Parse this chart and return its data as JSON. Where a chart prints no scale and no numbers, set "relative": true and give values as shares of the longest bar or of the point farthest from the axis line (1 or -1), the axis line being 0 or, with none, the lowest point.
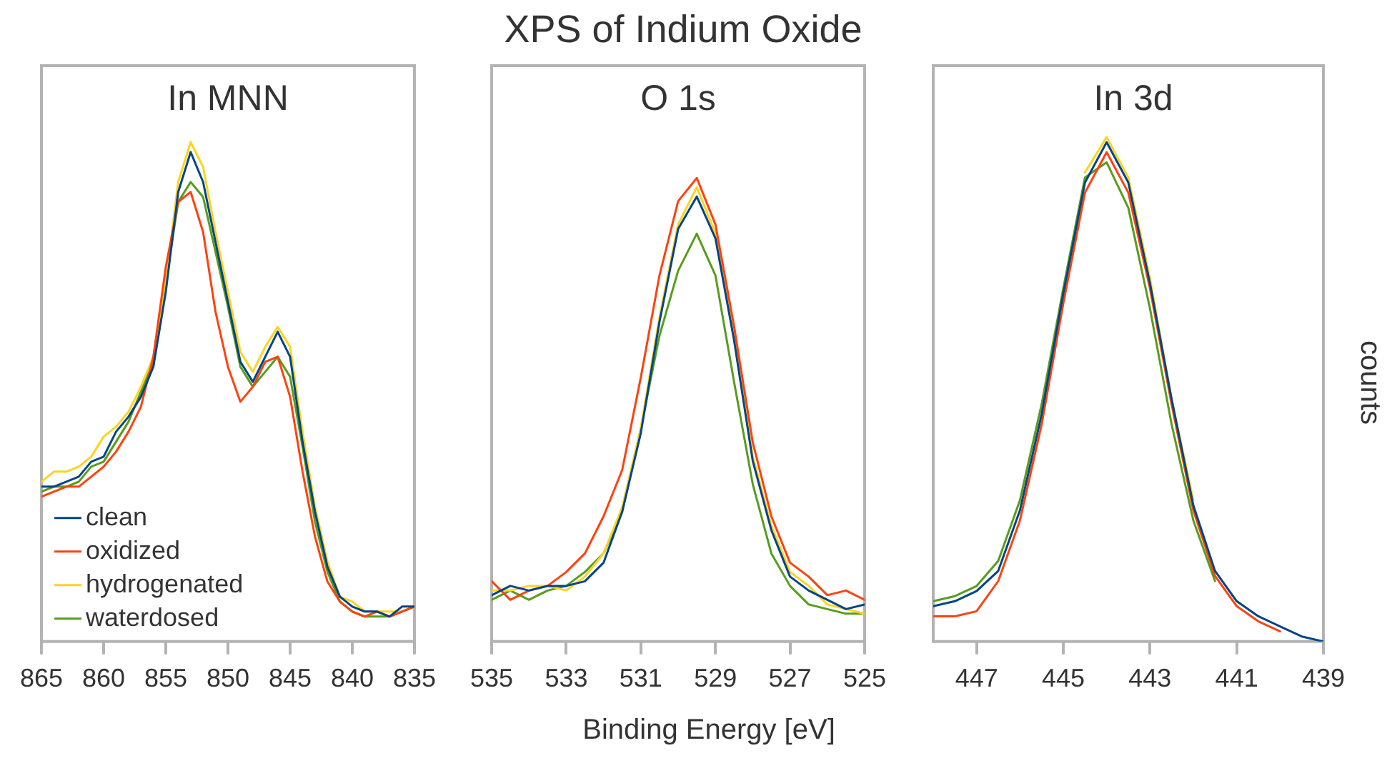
{
  "chart_data": [
    {
      "type": "line",
      "title": "In MNN",
      "relative": true,
      "marker": "none",
      "legend": "bottom left",
      "x": [
        865,
        864,
        863,
        862,
        861,
        860,
        859,
        858,
        857,
        856,
        855,
        854,
        853,
        852,
        851,
        850,
        849,
        848,
        847,
        846,
        845,
        844,
        843,
        842,
        841,
        840,
        839,
        838,
        837,
        836,
        835
      ],
      "xlim": [
        865,
        835
      ],
      "xticks": [
        865,
        860,
        855,
        850,
        845,
        840,
        835
      ],
      "series": [
        {
          "name": "clean",
          "color": "#004586",
          "values": [
            0.31,
            0.31,
            0.32,
            0.33,
            0.36,
            0.37,
            0.42,
            0.45,
            0.49,
            0.55,
            0.7,
            0.9,
            0.98,
            0.92,
            0.8,
            0.68,
            0.56,
            0.52,
            0.57,
            0.62,
            0.57,
            0.4,
            0.26,
            0.15,
            0.09,
            0.07,
            0.06,
            0.06,
            0.05,
            0.07,
            0.07
          ]
        },
        {
          "name": "oxidized",
          "color": "#ff420e",
          "values": [
            0.29,
            0.3,
            0.31,
            0.31,
            0.33,
            0.35,
            0.38,
            0.42,
            0.47,
            0.57,
            0.75,
            0.88,
            0.9,
            0.82,
            0.66,
            0.55,
            0.48,
            0.51,
            0.56,
            0.57,
            0.49,
            0.34,
            0.21,
            0.12,
            0.08,
            0.06,
            0.05,
            0.06,
            0.05,
            0.06,
            0.07
          ]
        },
        {
          "name": "hydrogenated",
          "color": "#ffd320",
          "values": [
            0.32,
            0.34,
            0.34,
            0.35,
            0.37,
            0.41,
            0.43,
            0.46,
            0.51,
            0.57,
            0.72,
            0.92,
            1,
            0.95,
            0.82,
            0.7,
            0.58,
            0.54,
            0.59,
            0.63,
            0.59,
            0.42,
            0.27,
            0.16,
            0.09,
            0.08,
            0.06,
            0.06,
            0.06,
            0.06,
            0.07
          ]
        },
        {
          "name": "waterdosed",
          "color": "#579d1c",
          "values": [
            0.3,
            0.31,
            0.31,
            0.32,
            0.35,
            0.36,
            0.4,
            0.44,
            0.5,
            0.56,
            0.72,
            0.88,
            0.92,
            0.89,
            0.78,
            0.67,
            0.55,
            0.51,
            0.54,
            0.57,
            0.53,
            0.39,
            0.24,
            0.14,
            0.08,
            0.06,
            0.05,
            0.05,
            0.05,
            0.06,
            0.07
          ]
        }
      ]
    },
    {
      "type": "line",
      "title": "O 1s",
      "xlabel": "Binding Energy [eV]",
      "annotations": [
        "XPS of Indium Oxide"
      ],
      "relative": true,
      "marker": "none",
      "x": [
        535,
        534.5,
        534,
        533.5,
        533,
        532.5,
        532,
        531.5,
        531,
        530.5,
        530,
        529.5,
        529,
        528.5,
        528,
        527.5,
        527,
        526.5,
        526,
        525.5,
        525
      ],
      "xlim": [
        535,
        525
      ],
      "xticks": [
        535,
        533,
        531,
        529,
        527,
        525
      ],
      "series": [
        {
          "color": "#004586",
          "values": [
            0.1,
            0.12,
            0.11,
            0.12,
            0.12,
            0.13,
            0.17,
            0.28,
            0.45,
            0.69,
            0.89,
            0.96,
            0.87,
            0.65,
            0.39,
            0.24,
            0.14,
            0.11,
            0.09,
            0.07,
            0.08
          ]
        },
        {
          "color": "#ff420e",
          "values": [
            0.13,
            0.09,
            0.11,
            0.12,
            0.15,
            0.19,
            0.27,
            0.37,
            0.57,
            0.79,
            0.95,
            1,
            0.9,
            0.68,
            0.43,
            0.27,
            0.17,
            0.14,
            0.1,
            0.11,
            0.09
          ]
        },
        {
          "color": "#ffd320",
          "values": [
            0.11,
            0.11,
            0.12,
            0.12,
            0.11,
            0.14,
            0.19,
            0.29,
            0.46,
            0.7,
            0.9,
            0.98,
            0.88,
            0.66,
            0.4,
            0.25,
            0.15,
            0.12,
            0.08,
            0.07,
            0.06
          ]
        },
        {
          "color": "#579d1c",
          "values": [
            0.09,
            0.11,
            0.09,
            0.11,
            0.12,
            0.15,
            0.19,
            0.28,
            0.46,
            0.66,
            0.8,
            0.88,
            0.79,
            0.56,
            0.34,
            0.19,
            0.12,
            0.08,
            0.07,
            0.06,
            0.06
          ]
        }
      ]
    },
    {
      "type": "line",
      "title": "In 3d",
      "ylabel": "counts",
      "relative": true,
      "marker": "none",
      "x": [
        448,
        447.5,
        447,
        446.5,
        446,
        445.5,
        445,
        444.5,
        444,
        443.5,
        443,
        442.5,
        442,
        441.5,
        441,
        440.5,
        440,
        439.5,
        439
      ],
      "xlim": [
        448,
        439
      ],
      "xticks": [
        447,
        445,
        443,
        441,
        439
      ],
      "series": [
        {
          "color": "#004586",
          "values": [
            0.07,
            0.08,
            0.1,
            0.14,
            0.26,
            0.45,
            0.69,
            0.91,
            0.99,
            0.91,
            0.71,
            0.48,
            0.27,
            0.14,
            0.08,
            0.05,
            0.03,
            0.01,
            0
          ]
        },
        {
          "color": "#ff420e",
          "values": [
            0.05,
            0.05,
            0.06,
            0.12,
            0.24,
            0.43,
            0.67,
            0.89,
            0.97,
            0.89,
            0.7,
            0.47,
            0.26,
            0.13,
            0.07,
            0.04,
            0.02,
            null,
            null
          ]
        },
        {
          "color": "#ffd320",
          "values": [
            null,
            null,
            null,
            null,
            null,
            null,
            null,
            0.93,
            1,
            0.92,
            0.72,
            0.48,
            0.28,
            null,
            null,
            null,
            null,
            null,
            null
          ]
        },
        {
          "color": "#579d1c",
          "values": [
            0.08,
            0.09,
            0.11,
            0.16,
            0.28,
            0.47,
            0.7,
            0.92,
            0.95,
            0.86,
            0.66,
            0.43,
            0.24,
            0.12,
            null,
            null,
            null,
            null,
            null
          ]
        }
      ]
    }
  ]
}
